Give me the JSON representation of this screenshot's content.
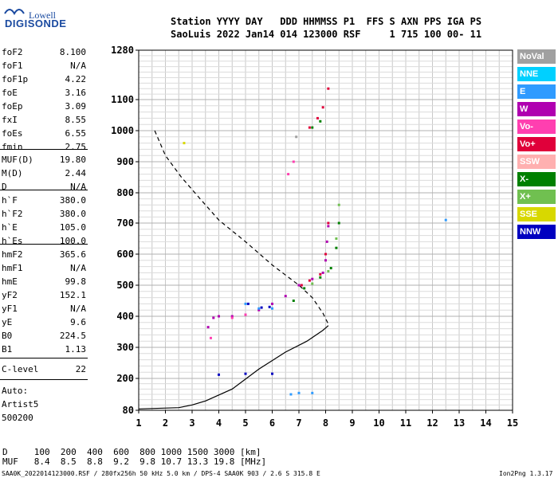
{
  "logo": {
    "lowell": "Lowell",
    "digisonde": "DIGISONDE"
  },
  "header": {
    "row1": "Station YYYY DAY   DDD HHMMSS P1  FFS S AXN PPS IGA PS",
    "row2": "SaoLuis 2022 Jan14 014 123000 RSF     1 715 100 00- 11"
  },
  "params_group1": [
    {
      "k": "foF2",
      "v": "8.100"
    },
    {
      "k": "foF1",
      "v": "N/A"
    },
    {
      "k": "foF1p",
      "v": "4.22"
    },
    {
      "k": "foE",
      "v": "3.16"
    },
    {
      "k": "foEp",
      "v": "3.09"
    },
    {
      "k": "fxI",
      "v": "8.55"
    },
    {
      "k": "foEs",
      "v": "6.55"
    },
    {
      "k": "fmin",
      "v": "2.75"
    }
  ],
  "params_group2": [
    {
      "k": "MUF(D)",
      "v": "19.80"
    },
    {
      "k": "M(D)",
      "v": "2.44"
    },
    {
      "k": "D",
      "v": "N/A"
    }
  ],
  "params_group3": [
    {
      "k": "h`F",
      "v": "380.0"
    },
    {
      "k": "h`F2",
      "v": "380.0"
    },
    {
      "k": "h`E",
      "v": "105.0"
    },
    {
      "k": "h`Es",
      "v": "100.0"
    }
  ],
  "params_group4": [
    {
      "k": "hmF2",
      "v": "365.6"
    },
    {
      "k": "hmF1",
      "v": "N/A"
    },
    {
      "k": "hmE",
      "v": "99.8"
    },
    {
      "k": "yF2",
      "v": "152.1"
    },
    {
      "k": "yF1",
      "v": "N/A"
    },
    {
      "k": "yE",
      "v": "9.6"
    },
    {
      "k": "B0",
      "v": "224.5"
    },
    {
      "k": "B1",
      "v": "1.13"
    }
  ],
  "params_group5": [
    {
      "k": "C-level",
      "v": "22"
    }
  ],
  "autoscale": {
    "line1": "Auto:",
    "line2": "Artist5",
    "line3": "500200"
  },
  "legend": [
    {
      "label": "NoVal",
      "color": "#a0a0a0"
    },
    {
      "label": "NNE",
      "color": "#00d0ff"
    },
    {
      "label": "E",
      "color": "#2f9bff"
    },
    {
      "label": "W",
      "color": "#b000b0"
    },
    {
      "label": "Vo-",
      "color": "#ff3fb0"
    },
    {
      "label": "Vo+",
      "color": "#e0003a"
    },
    {
      "label": "SSW",
      "color": "#ffb0b0"
    },
    {
      "label": "X-",
      "color": "#008000"
    },
    {
      "label": "X+",
      "color": "#70c050"
    },
    {
      "label": "SSE",
      "color": "#d8d800"
    },
    {
      "label": "NNW",
      "color": "#0000c0"
    }
  ],
  "footer": {
    "d_row": "D     100  200  400  600  800 1000 1500 3000 [km]",
    "muf_row": "MUF   8.4  8.5  8.8  9.2  9.8 10.7 13.3 19.8 [MHz]",
    "info": "SAA0K_2022014123000.RSF / 280fx256h 50 kHz 5.0 km / DPS-4 SAA0K 903 / 2.6 S 315.8 E",
    "version": "Ion2Png 1.3.17"
  },
  "chart_data": {
    "type": "scatter",
    "x_ticks": [
      "1",
      "2",
      "3",
      "4",
      "5",
      "6",
      "7",
      "8",
      "9",
      "10",
      "11",
      "12",
      "13",
      "14",
      "15"
    ],
    "y_ticks": [
      "80",
      "200",
      "300",
      "400",
      "500",
      "600",
      "700",
      "800",
      "900",
      "1000",
      "1100",
      "1280"
    ],
    "xlim": [
      1,
      15
    ],
    "ylim": [
      80,
      1280
    ],
    "grid": true,
    "series": [
      {
        "name": "W",
        "color": "#b000b0",
        "points": [
          [
            3.6,
            365
          ],
          [
            3.8,
            395
          ],
          [
            4.0,
            400
          ],
          [
            4.5,
            400
          ],
          [
            5.0,
            405
          ],
          [
            5.5,
            420
          ],
          [
            6.0,
            440
          ],
          [
            6.5,
            465
          ],
          [
            7.0,
            500
          ],
          [
            7.5,
            520
          ],
          [
            7.9,
            540
          ],
          [
            8.0,
            580
          ],
          [
            8.05,
            640
          ],
          [
            8.1,
            690
          ]
        ]
      },
      {
        "name": "Vo+",
        "color": "#e0003a",
        "points": [
          [
            7.1,
            500
          ],
          [
            7.4,
            515
          ],
          [
            7.8,
            535
          ],
          [
            8.0,
            600
          ],
          [
            8.1,
            700
          ],
          [
            7.4,
            1010
          ],
          [
            7.7,
            1040
          ],
          [
            7.9,
            1075
          ],
          [
            8.1,
            1140
          ]
        ]
      },
      {
        "name": "Vo-",
        "color": "#ff3fb0",
        "points": [
          [
            3.7,
            330
          ],
          [
            4.5,
            395
          ],
          [
            5.0,
            405
          ],
          [
            6.6,
            860
          ],
          [
            6.8,
            900
          ]
        ]
      },
      {
        "name": "X-",
        "color": "#008000",
        "points": [
          [
            6.8,
            450
          ],
          [
            7.2,
            490
          ],
          [
            7.8,
            525
          ],
          [
            8.2,
            555
          ],
          [
            8.4,
            620
          ],
          [
            8.5,
            700
          ],
          [
            7.5,
            1010
          ],
          [
            7.8,
            1030
          ]
        ]
      },
      {
        "name": "X+",
        "color": "#70c050",
        "points": [
          [
            7.5,
            505
          ],
          [
            8.1,
            545
          ],
          [
            8.4,
            650
          ],
          [
            8.5,
            760
          ]
        ]
      },
      {
        "name": "E",
        "color": "#2f9bff",
        "points": [
          [
            5.0,
            440
          ],
          [
            5.5,
            425
          ],
          [
            6.0,
            425
          ],
          [
            6.7,
            140
          ],
          [
            7.0,
            145
          ],
          [
            7.5,
            145
          ],
          [
            12.5,
            710
          ]
        ]
      },
      {
        "name": "NNW",
        "color": "#0000c0",
        "points": [
          [
            5.1,
            440
          ],
          [
            5.6,
            428
          ],
          [
            5.9,
            430
          ],
          [
            4.0,
            212
          ],
          [
            5.0,
            215
          ],
          [
            6.0,
            215
          ]
        ]
      },
      {
        "name": "SSE",
        "color": "#d8d800",
        "points": [
          [
            2.7,
            960
          ]
        ]
      },
      {
        "name": "NoVal",
        "color": "#a0a0a0",
        "points": [
          [
            6.9,
            980
          ]
        ]
      }
    ],
    "profile_dashed": [
      [
        1.6,
        1000
      ],
      [
        2.0,
        920
      ],
      [
        2.6,
        850
      ],
      [
        3.3,
        780
      ],
      [
        4.0,
        710
      ],
      [
        5.0,
        640
      ],
      [
        6.0,
        565
      ],
      [
        7.0,
        500
      ],
      [
        7.5,
        460
      ],
      [
        7.9,
        410
      ],
      [
        8.1,
        375
      ]
    ],
    "profile_solid": [
      [
        1.0,
        85
      ],
      [
        2.5,
        90
      ],
      [
        3.0,
        100
      ],
      [
        3.5,
        115
      ],
      [
        4.5,
        160
      ],
      [
        5.5,
        230
      ],
      [
        6.5,
        285
      ],
      [
        7.3,
        320
      ],
      [
        7.9,
        355
      ],
      [
        8.1,
        370
      ]
    ]
  }
}
